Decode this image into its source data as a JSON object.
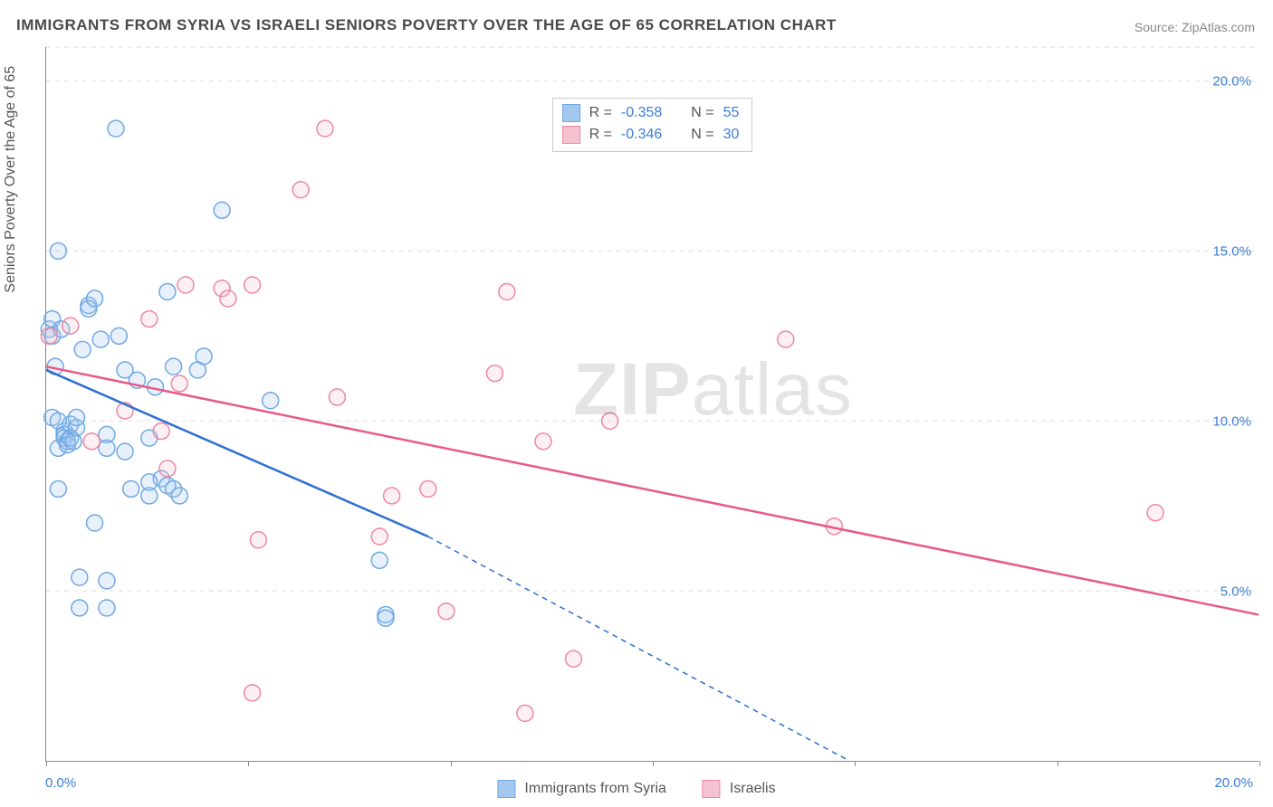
{
  "title": "IMMIGRANTS FROM SYRIA VS ISRAELI SENIORS POVERTY OVER THE AGE OF 65 CORRELATION CHART",
  "source_label": "Source: ",
  "source_name": "ZipAtlas.com",
  "yaxis_title": "Seniors Poverty Over the Age of 65",
  "watermark": "ZIPatlas",
  "chart": {
    "type": "scatter",
    "background_color": "#ffffff",
    "grid_color": "#dddddd",
    "axis_color": "#888888",
    "tick_label_color": "#3b7dd8",
    "xlim": [
      0,
      20
    ],
    "ylim": [
      0,
      21
    ],
    "x_ticks": [
      0,
      3.33,
      6.67,
      10,
      13.33,
      16.67,
      20
    ],
    "x_tick_labels": {
      "0": "0.0%",
      "20": "20.0%"
    },
    "y_ticks": [
      5,
      10,
      15,
      20
    ],
    "y_tick_labels": [
      "5.0%",
      "10.0%",
      "15.0%",
      "20.0%"
    ],
    "marker_radius": 9,
    "marker_stroke_width": 1.5,
    "marker_fill_opacity": 0.25,
    "line_width": 2.5,
    "title_fontsize": 17,
    "label_fontsize": 16,
    "tick_fontsize": 15
  },
  "series": {
    "syria": {
      "label": "Immigrants from Syria",
      "color_fill": "#a3c7ef",
      "color_stroke": "#6fa8e5",
      "line_color": "#2f6fd0",
      "R": "-0.358",
      "N": "55",
      "regression": {
        "x1": 0,
        "y1": 11.5,
        "x2": 6.3,
        "y2": 6.6,
        "ext_x2": 13.2,
        "ext_y2": 0.05
      },
      "points": [
        [
          0.05,
          12.7
        ],
        [
          0.1,
          12.5
        ],
        [
          0.1,
          13.0
        ],
        [
          0.1,
          10.1
        ],
        [
          0.15,
          11.6
        ],
        [
          0.2,
          10.0
        ],
        [
          0.2,
          9.2
        ],
        [
          0.2,
          8.0
        ],
        [
          0.2,
          15.0
        ],
        [
          0.25,
          12.7
        ],
        [
          0.3,
          9.7
        ],
        [
          0.3,
          9.6
        ],
        [
          0.3,
          9.5
        ],
        [
          0.35,
          9.4
        ],
        [
          0.35,
          9.3
        ],
        [
          0.4,
          9.9
        ],
        [
          0.4,
          9.5
        ],
        [
          0.45,
          9.4
        ],
        [
          0.5,
          9.8
        ],
        [
          0.5,
          10.1
        ],
        [
          0.55,
          5.4
        ],
        [
          0.55,
          4.5
        ],
        [
          0.6,
          12.1
        ],
        [
          0.7,
          13.4
        ],
        [
          0.7,
          13.3
        ],
        [
          0.8,
          13.6
        ],
        [
          0.8,
          7.0
        ],
        [
          0.9,
          12.4
        ],
        [
          1.0,
          9.6
        ],
        [
          1.0,
          9.2
        ],
        [
          1.0,
          5.3
        ],
        [
          1.0,
          4.5
        ],
        [
          1.15,
          18.6
        ],
        [
          1.2,
          12.5
        ],
        [
          1.3,
          11.5
        ],
        [
          1.3,
          9.1
        ],
        [
          1.4,
          8.0
        ],
        [
          1.5,
          11.2
        ],
        [
          1.7,
          9.5
        ],
        [
          1.7,
          7.8
        ],
        [
          1.8,
          11.0
        ],
        [
          1.9,
          8.3
        ],
        [
          2.0,
          13.8
        ],
        [
          2.0,
          8.1
        ],
        [
          2.1,
          11.6
        ],
        [
          2.1,
          8.0
        ],
        [
          2.2,
          7.8
        ],
        [
          2.5,
          11.5
        ],
        [
          2.6,
          11.9
        ],
        [
          2.9,
          16.2
        ],
        [
          3.7,
          10.6
        ],
        [
          5.5,
          5.9
        ],
        [
          5.6,
          4.3
        ],
        [
          5.6,
          4.2
        ],
        [
          1.7,
          8.2
        ]
      ]
    },
    "israeli": {
      "label": "Israelis",
      "color_fill": "#f5c2cf",
      "color_stroke": "#ef87a3",
      "line_color": "#e75a87",
      "R": "-0.346",
      "N": "30",
      "regression": {
        "x1": 0,
        "y1": 11.6,
        "x2": 20,
        "y2": 4.3
      },
      "points": [
        [
          0.05,
          12.5
        ],
        [
          0.4,
          12.8
        ],
        [
          0.75,
          9.4
        ],
        [
          1.3,
          10.3
        ],
        [
          1.7,
          13.0
        ],
        [
          1.9,
          9.7
        ],
        [
          2.0,
          8.6
        ],
        [
          2.2,
          11.1
        ],
        [
          2.3,
          14.0
        ],
        [
          2.9,
          13.9
        ],
        [
          3.0,
          13.6
        ],
        [
          3.4,
          2.0
        ],
        [
          3.4,
          14.0
        ],
        [
          3.5,
          6.5
        ],
        [
          4.2,
          16.8
        ],
        [
          4.6,
          18.6
        ],
        [
          4.8,
          10.7
        ],
        [
          5.5,
          6.6
        ],
        [
          5.7,
          7.8
        ],
        [
          6.3,
          8.0
        ],
        [
          6.6,
          4.4
        ],
        [
          7.4,
          11.4
        ],
        [
          7.6,
          13.8
        ],
        [
          7.9,
          1.4
        ],
        [
          8.7,
          3.0
        ],
        [
          8.2,
          9.4
        ],
        [
          9.3,
          10.0
        ],
        [
          12.2,
          12.4
        ],
        [
          13.0,
          6.9
        ],
        [
          18.3,
          7.3
        ]
      ]
    }
  },
  "legend": {
    "stats_rows": [
      {
        "series": "syria",
        "r_label": "R =",
        "n_label": "N ="
      },
      {
        "series": "israeli",
        "r_label": "R =",
        "n_label": "N ="
      }
    ]
  }
}
